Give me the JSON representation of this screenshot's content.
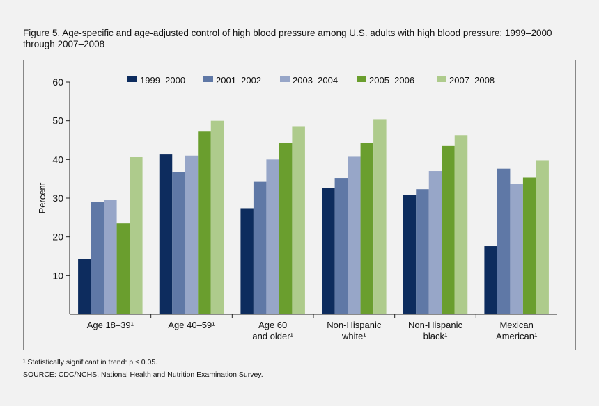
{
  "title": "Figure 5. Age-specific and age-adjusted control of high blood pressure among U.S. adults with high blood pressure: 1999–2000 through 2007–2008",
  "footnote": "¹ Statistically significant in trend: p ≤ 0.05.",
  "source": "SOURCE: CDC/NCHS, National Health and Nutrition Examination Survey.",
  "chart_data": {
    "type": "bar",
    "title": "",
    "xlabel": "",
    "ylabel": "Percent",
    "ylim": [
      0,
      60
    ],
    "yticks": [
      10,
      20,
      30,
      40,
      50,
      60
    ],
    "grid": false,
    "legend_placement": "top",
    "categories": [
      [
        "Age 18–39¹"
      ],
      [
        "Age 40–59¹"
      ],
      [
        "Age 60",
        "and older¹"
      ],
      [
        "Non-Hispanic",
        "white¹"
      ],
      [
        "Non-Hispanic",
        "black¹"
      ],
      [
        "Mexican",
        "American¹"
      ]
    ],
    "series": [
      {
        "name": "1999–2000",
        "color": "#0d2c5e",
        "values": [
          14.3,
          41.3,
          27.4,
          32.6,
          30.8,
          17.6
        ]
      },
      {
        "name": "2001–2002",
        "color": "#5f78a6",
        "values": [
          29.0,
          36.8,
          34.2,
          35.2,
          32.3,
          37.6
        ]
      },
      {
        "name": "2003–2004",
        "color": "#97a6c8",
        "values": [
          29.5,
          41.0,
          40.0,
          40.7,
          37.0,
          33.6
        ]
      },
      {
        "name": "2005–2006",
        "color": "#6a9e2e",
        "values": [
          23.5,
          47.2,
          44.2,
          44.3,
          43.5,
          35.3
        ]
      },
      {
        "name": "2007–2008",
        "color": "#aecb8c",
        "values": [
          40.6,
          50.0,
          48.6,
          50.4,
          46.3,
          39.8
        ]
      }
    ]
  }
}
